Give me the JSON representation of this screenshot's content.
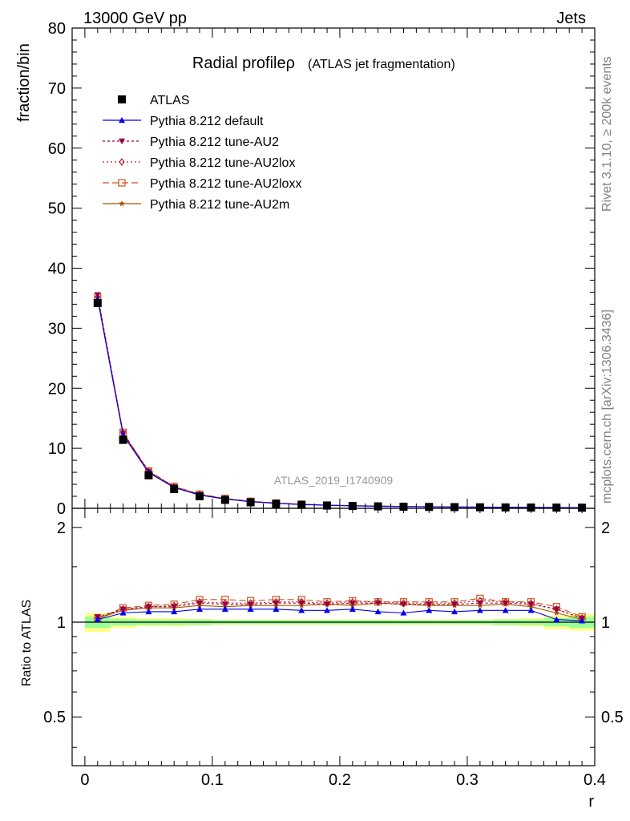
{
  "header": {
    "left": "13000 GeV pp",
    "right": "Jets"
  },
  "side_labels": {
    "rivet": "Rivet 3.1.10, ≥ 200k events",
    "mcplots": "mcplots.cern.ch [arXiv:1306.3436]"
  },
  "chart_data": {
    "type": "line",
    "title": "Radial profileρ",
    "subtitle": "(ATLAS jet fragmentation)",
    "watermark": "ATLAS_2019_I1740909",
    "xlabel": "r",
    "ylabel_main": "fraction/bin",
    "ylabel_ratio": "Ratio to ATLAS",
    "xlim": [
      -0.01,
      0.4
    ],
    "ylim_main": [
      0,
      80
    ],
    "ylim_ratio": [
      0.35,
      2.3
    ],
    "ratio_log_scale": true,
    "x_ticks": [
      "0",
      "0.1",
      "0.2",
      "0.3",
      "0.4"
    ],
    "y_ticks_main": [
      "0",
      "10",
      "20",
      "30",
      "40",
      "50",
      "60",
      "70",
      "80"
    ],
    "y_ticks_ratio": [
      "0.5",
      "1",
      "2"
    ],
    "x": [
      0.01,
      0.03,
      0.05,
      0.07,
      0.09,
      0.11,
      0.13,
      0.15,
      0.17,
      0.19,
      0.21,
      0.23,
      0.25,
      0.27,
      0.29,
      0.31,
      0.33,
      0.35,
      0.37,
      0.39
    ],
    "data": {
      "name": "ATLAS",
      "values": [
        34.2,
        11.4,
        5.5,
        3.2,
        2.0,
        1.4,
        1.0,
        0.75,
        0.58,
        0.46,
        0.38,
        0.32,
        0.27,
        0.23,
        0.2,
        0.17,
        0.15,
        0.13,
        0.12,
        0.1
      ],
      "color": "#000000"
    },
    "ratio_band": {
      "stat": [
        0.04,
        0.025,
        0.02,
        0.02,
        0.02,
        0.015,
        0.015,
        0.015,
        0.015,
        0.015,
        0.015,
        0.015,
        0.015,
        0.015,
        0.015,
        0.015,
        0.02,
        0.02,
        0.03,
        0.04
      ],
      "total": [
        0.07,
        0.04,
        0.03,
        0.03,
        0.025,
        0.02,
        0.02,
        0.02,
        0.02,
        0.02,
        0.02,
        0.02,
        0.02,
        0.02,
        0.02,
        0.02,
        0.025,
        0.03,
        0.05,
        0.06
      ],
      "stat_color": "#99ff99",
      "total_color": "#ffff88"
    },
    "series": [
      {
        "name": "Pythia 8.212 default",
        "color": "#0000ee",
        "marker": "triangle-up",
        "dash": "",
        "ratio": [
          1.02,
          1.07,
          1.08,
          1.08,
          1.1,
          1.1,
          1.1,
          1.1,
          1.09,
          1.09,
          1.1,
          1.08,
          1.07,
          1.09,
          1.08,
          1.09,
          1.09,
          1.09,
          1.02,
          1.01
        ]
      },
      {
        "name": "Pythia 8.212 tune-AU2",
        "color": "#990044",
        "marker": "triangle-down",
        "dash": "3,3",
        "ratio": [
          1.04,
          1.1,
          1.12,
          1.12,
          1.15,
          1.14,
          1.14,
          1.15,
          1.15,
          1.14,
          1.15,
          1.15,
          1.14,
          1.14,
          1.14,
          1.15,
          1.15,
          1.14,
          1.1,
          1.03
        ]
      },
      {
        "name": "Pythia 8.212 tune-AU2lox",
        "color": "#bb2233",
        "marker": "diamond-open",
        "dash": "2,3",
        "ratio": [
          1.03,
          1.1,
          1.12,
          1.13,
          1.16,
          1.15,
          1.15,
          1.16,
          1.16,
          1.15,
          1.16,
          1.16,
          1.15,
          1.15,
          1.15,
          1.17,
          1.16,
          1.15,
          1.1,
          1.03
        ]
      },
      {
        "name": "Pythia 8.212 tune-AU2loxx",
        "color": "#cc5522",
        "marker": "square-open",
        "dash": "8,4",
        "ratio": [
          1.03,
          1.11,
          1.13,
          1.14,
          1.18,
          1.18,
          1.17,
          1.18,
          1.18,
          1.16,
          1.17,
          1.16,
          1.16,
          1.16,
          1.16,
          1.19,
          1.16,
          1.16,
          1.12,
          1.04
        ]
      },
      {
        "name": "Pythia 8.212 tune-AU2m",
        "color": "#aa5500",
        "marker": "star",
        "dash": "",
        "ratio": [
          1.03,
          1.09,
          1.11,
          1.11,
          1.13,
          1.12,
          1.13,
          1.13,
          1.13,
          1.14,
          1.13,
          1.15,
          1.14,
          1.13,
          1.13,
          1.13,
          1.14,
          1.12,
          1.07,
          1.02
        ]
      }
    ],
    "legend_placement": "top-left",
    "grid": false
  }
}
